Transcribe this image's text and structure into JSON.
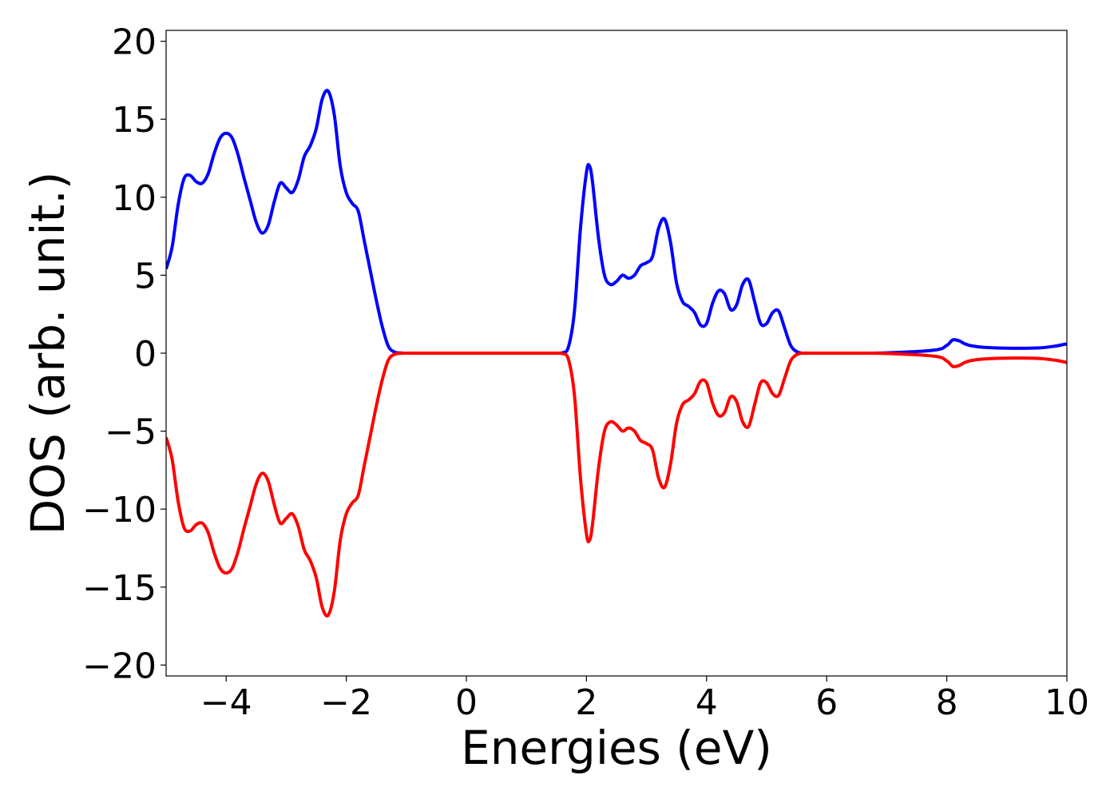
{
  "chart_data": {
    "type": "line",
    "title": "",
    "xlabel": "Energies (eV)",
    "ylabel": "DOS (arb. unit.)",
    "xlim": [
      -5,
      10
    ],
    "ylim": [
      -20.7,
      20.7
    ],
    "grid": false,
    "legend": "none",
    "x_ticks": [
      -4,
      -2,
      0,
      2,
      4,
      6,
      8,
      10
    ],
    "y_ticks": [
      -20,
      -15,
      -10,
      -5,
      0,
      5,
      10,
      15,
      20
    ],
    "x_tick_labels": [
      "−4",
      "−2",
      "0",
      "2",
      "4",
      "6",
      "8",
      "10"
    ],
    "y_tick_labels": [
      "−20",
      "−15",
      "−10",
      "−5",
      "0",
      "5",
      "10",
      "15",
      "20"
    ],
    "series": [
      {
        "color": "#0000ff",
        "x": [
          -5.0,
          -4.9,
          -4.8,
          -4.7,
          -4.6,
          -4.5,
          -4.4,
          -4.3,
          -4.2,
          -4.1,
          -4.0,
          -3.9,
          -3.8,
          -3.7,
          -3.6,
          -3.5,
          -3.4,
          -3.3,
          -3.2,
          -3.1,
          -3.0,
          -2.9,
          -2.8,
          -2.7,
          -2.6,
          -2.5,
          -2.4,
          -2.3,
          -2.2,
          -2.1,
          -2.0,
          -1.9,
          -1.8,
          -1.7,
          -1.6,
          -1.5,
          -1.4,
          -1.3,
          -1.2,
          -1.1,
          -1.0,
          -0.9,
          -0.8,
          -0.7,
          -0.6,
          -0.5,
          0.0,
          1.0,
          1.5,
          1.6,
          1.7,
          1.8,
          1.9,
          2.0,
          2.05,
          2.1,
          2.2,
          2.3,
          2.4,
          2.5,
          2.6,
          2.7,
          2.8,
          2.9,
          3.0,
          3.1,
          3.2,
          3.3,
          3.4,
          3.5,
          3.6,
          3.7,
          3.8,
          3.9,
          4.0,
          4.1,
          4.2,
          4.3,
          4.4,
          4.5,
          4.6,
          4.7,
          4.8,
          4.9,
          5.0,
          5.1,
          5.2,
          5.3,
          5.4,
          5.5,
          5.6,
          5.7,
          5.8,
          5.9,
          6.0,
          6.1,
          6.2,
          6.3,
          7.0,
          7.8,
          8.0,
          8.1,
          8.2,
          8.3,
          8.4,
          8.6,
          9.0,
          9.5,
          9.8,
          10.0
        ],
        "y": [
          5.4,
          6.8,
          9.5,
          11.2,
          11.4,
          11.0,
          10.9,
          11.5,
          12.8,
          13.8,
          14.1,
          13.8,
          12.7,
          11.2,
          9.8,
          8.4,
          7.7,
          8.2,
          9.7,
          10.9,
          10.6,
          10.3,
          11.1,
          12.6,
          13.3,
          14.4,
          16.3,
          16.8,
          15.3,
          12.0,
          10.3,
          9.6,
          9.1,
          7.2,
          5.3,
          3.4,
          1.7,
          0.45,
          0.08,
          0.01,
          0.0,
          0.0,
          0.0,
          0.0,
          0.0,
          0.0,
          0.0,
          0.0,
          0.0,
          0.03,
          0.4,
          2.7,
          8.0,
          11.6,
          12.0,
          11.0,
          7.4,
          5.0,
          4.4,
          4.6,
          5.0,
          4.8,
          5.0,
          5.6,
          5.8,
          6.2,
          8.0,
          8.6,
          7.1,
          4.5,
          3.3,
          3.0,
          2.6,
          1.8,
          1.9,
          3.2,
          4.0,
          3.8,
          2.8,
          3.1,
          4.4,
          4.7,
          3.3,
          1.9,
          1.9,
          2.6,
          2.7,
          1.6,
          0.5,
          0.1,
          0.0,
          0.0,
          0.0,
          0.0,
          0.0,
          0.0,
          0.0,
          0.0,
          0.02,
          0.2,
          0.5,
          0.85,
          0.8,
          0.6,
          0.48,
          0.38,
          0.32,
          0.33,
          0.45,
          0.6
        ]
      },
      {
        "color": "#ff0000",
        "x": [
          -5.0,
          -4.9,
          -4.8,
          -4.7,
          -4.6,
          -4.5,
          -4.4,
          -4.3,
          -4.2,
          -4.1,
          -4.0,
          -3.9,
          -3.8,
          -3.7,
          -3.6,
          -3.5,
          -3.4,
          -3.3,
          -3.2,
          -3.1,
          -3.0,
          -2.9,
          -2.8,
          -2.7,
          -2.6,
          -2.5,
          -2.4,
          -2.3,
          -2.2,
          -2.1,
          -2.0,
          -1.9,
          -1.8,
          -1.7,
          -1.6,
          -1.5,
          -1.4,
          -1.3,
          -1.2,
          -1.1,
          -1.0,
          -0.9,
          -0.8,
          -0.7,
          -0.6,
          -0.5,
          0.0,
          1.0,
          1.5,
          1.6,
          1.7,
          1.8,
          1.9,
          2.0,
          2.05,
          2.1,
          2.2,
          2.3,
          2.4,
          2.5,
          2.6,
          2.7,
          2.8,
          2.9,
          3.0,
          3.1,
          3.2,
          3.3,
          3.4,
          3.5,
          3.6,
          3.7,
          3.8,
          3.9,
          4.0,
          4.1,
          4.2,
          4.3,
          4.4,
          4.5,
          4.6,
          4.7,
          4.8,
          4.9,
          5.0,
          5.1,
          5.2,
          5.3,
          5.4,
          5.5,
          5.6,
          5.7,
          5.8,
          5.9,
          6.0,
          6.1,
          6.2,
          6.3,
          7.0,
          7.8,
          8.0,
          8.1,
          8.2,
          8.3,
          8.4,
          8.6,
          9.0,
          9.5,
          9.8,
          10.0
        ],
        "y": [
          -5.4,
          -6.8,
          -9.5,
          -11.2,
          -11.4,
          -11.0,
          -10.9,
          -11.5,
          -12.8,
          -13.8,
          -14.1,
          -13.8,
          -12.7,
          -11.2,
          -9.8,
          -8.4,
          -7.7,
          -8.2,
          -9.7,
          -10.9,
          -10.6,
          -10.3,
          -11.1,
          -12.6,
          -13.3,
          -14.4,
          -16.3,
          -16.8,
          -15.3,
          -12.0,
          -10.3,
          -9.6,
          -9.1,
          -7.2,
          -5.3,
          -3.4,
          -1.7,
          -0.45,
          -0.08,
          -0.01,
          0.0,
          0.0,
          0.0,
          0.0,
          0.0,
          0.0,
          0.0,
          0.0,
          0.0,
          -0.03,
          -0.4,
          -2.7,
          -8.0,
          -11.6,
          -12.0,
          -11.0,
          -7.4,
          -5.0,
          -4.4,
          -4.6,
          -5.0,
          -4.8,
          -5.0,
          -5.6,
          -5.8,
          -6.2,
          -8.0,
          -8.6,
          -7.1,
          -4.5,
          -3.3,
          -3.0,
          -2.6,
          -1.8,
          -1.9,
          -3.2,
          -4.0,
          -3.8,
          -2.8,
          -3.1,
          -4.4,
          -4.7,
          -3.3,
          -1.9,
          -1.9,
          -2.6,
          -2.7,
          -1.6,
          -0.5,
          -0.1,
          0.0,
          0.0,
          0.0,
          0.0,
          0.0,
          0.0,
          0.0,
          0.0,
          -0.02,
          -0.2,
          -0.5,
          -0.85,
          -0.8,
          -0.6,
          -0.48,
          -0.38,
          -0.32,
          -0.33,
          -0.45,
          -0.6
        ]
      }
    ]
  }
}
